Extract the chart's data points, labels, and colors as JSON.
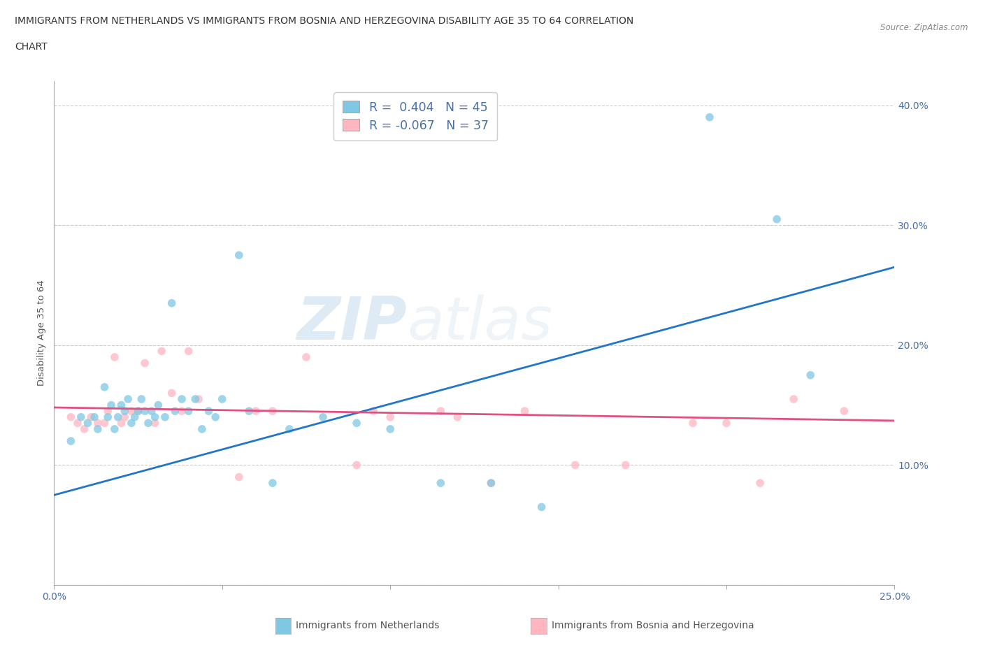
{
  "title_line1": "IMMIGRANTS FROM NETHERLANDS VS IMMIGRANTS FROM BOSNIA AND HERZEGOVINA DISABILITY AGE 35 TO 64 CORRELATION",
  "title_line2": "CHART",
  "source_text": "Source: ZipAtlas.com",
  "ylabel": "Disability Age 35 to 64",
  "xlim": [
    0.0,
    0.25
  ],
  "ylim": [
    0.0,
    0.42
  ],
  "xticks": [
    0.0,
    0.05,
    0.1,
    0.15,
    0.2,
    0.25
  ],
  "yticks": [
    0.0,
    0.1,
    0.2,
    0.3,
    0.4
  ],
  "ytick_labels": [
    "",
    "10.0%",
    "20.0%",
    "30.0%",
    "40.0%"
  ],
  "legend_r1": "R =  0.404   N = 45",
  "legend_r2": "R = -0.067   N = 37",
  "color_blue": "#7ec8e3",
  "color_pink": "#ffb6c1",
  "color_blue_line": "#2176c7",
  "color_pink_line": "#e05080",
  "blue_scatter_x": [
    0.005,
    0.008,
    0.01,
    0.012,
    0.013,
    0.015,
    0.016,
    0.017,
    0.018,
    0.019,
    0.02,
    0.021,
    0.022,
    0.023,
    0.024,
    0.025,
    0.026,
    0.027,
    0.028,
    0.029,
    0.03,
    0.031,
    0.033,
    0.035,
    0.036,
    0.038,
    0.04,
    0.042,
    0.044,
    0.046,
    0.048,
    0.05,
    0.055,
    0.058,
    0.065,
    0.07,
    0.08,
    0.09,
    0.1,
    0.115,
    0.13,
    0.145,
    0.195,
    0.215,
    0.225
  ],
  "blue_scatter_y": [
    0.12,
    0.14,
    0.135,
    0.14,
    0.13,
    0.165,
    0.14,
    0.15,
    0.13,
    0.14,
    0.15,
    0.145,
    0.155,
    0.135,
    0.14,
    0.145,
    0.155,
    0.145,
    0.135,
    0.145,
    0.14,
    0.15,
    0.14,
    0.235,
    0.145,
    0.155,
    0.145,
    0.155,
    0.13,
    0.145,
    0.14,
    0.155,
    0.275,
    0.145,
    0.085,
    0.13,
    0.14,
    0.135,
    0.13,
    0.085,
    0.085,
    0.065,
    0.39,
    0.305,
    0.175
  ],
  "pink_scatter_x": [
    0.005,
    0.007,
    0.009,
    0.011,
    0.013,
    0.015,
    0.016,
    0.018,
    0.02,
    0.021,
    0.023,
    0.025,
    0.027,
    0.03,
    0.032,
    0.035,
    0.038,
    0.04,
    0.043,
    0.055,
    0.06,
    0.065,
    0.075,
    0.09,
    0.095,
    0.1,
    0.115,
    0.12,
    0.13,
    0.14,
    0.155,
    0.17,
    0.19,
    0.2,
    0.21,
    0.22,
    0.235
  ],
  "pink_scatter_y": [
    0.14,
    0.135,
    0.13,
    0.14,
    0.135,
    0.135,
    0.145,
    0.19,
    0.135,
    0.14,
    0.145,
    0.145,
    0.185,
    0.135,
    0.195,
    0.16,
    0.145,
    0.195,
    0.155,
    0.09,
    0.145,
    0.145,
    0.19,
    0.1,
    0.145,
    0.14,
    0.145,
    0.14,
    0.085,
    0.145,
    0.1,
    0.1,
    0.135,
    0.135,
    0.085,
    0.155,
    0.145
  ],
  "blue_trend_x": [
    0.0,
    0.25
  ],
  "blue_trend_y": [
    0.075,
    0.265
  ],
  "pink_trend_x": [
    0.0,
    0.25
  ],
  "pink_trend_y": [
    0.148,
    0.137
  ],
  "watermark_zip": "ZIP",
  "watermark_atlas": "atlas",
  "background_color": "#ffffff",
  "grid_color": "#cccccc",
  "bottom_legend_blue": "Immigrants from Netherlands",
  "bottom_legend_pink": "Immigrants from Bosnia and Herzegovina"
}
